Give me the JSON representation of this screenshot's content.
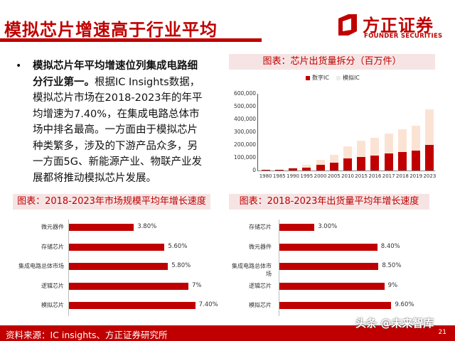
{
  "header": {
    "title": "模拟芯片增速高于行业平均",
    "logo_cn": "方正证券",
    "logo_en": "FOUNDER SECURITIES"
  },
  "bullet": {
    "marker": "•",
    "bold": "模拟芯片年平均增速位列集成电路细分行业第一。",
    "text": "根据IC Insights数据，模拟芯片市场在2018-2023年的年平均增速为7.40%，在集成电路总体市场中排名最高。一方面由于模拟芯片种类繁多，涉及的下游产品众多，另一方面5G、新能源产业、物联产业发展都将推动模拟芯片发展。"
  },
  "footer": {
    "source": "资料来源：IC insights、方正证券研究所",
    "page": "21",
    "watermark": "头条 @未来智库"
  },
  "colors": {
    "accent": "#c00000",
    "light": "#fbe3d4",
    "header_bg": "#f6e4e4"
  },
  "chart_data": [
    {
      "type": "bar",
      "stacked": true,
      "title": "图表：芯片出货量拆分（百万件）",
      "legend": [
        "数字IC",
        "模拟IC"
      ],
      "legend_position": "top",
      "categories": [
        "1980",
        "1985",
        "1990",
        "1995",
        "2000",
        "2005",
        "2010",
        "2015",
        "2016",
        "2017",
        "2018",
        "2019",
        "2023"
      ],
      "series": [
        {
          "name": "数字IC",
          "color": "#c00000",
          "values": [
            3000,
            6000,
            17000,
            25000,
            45000,
            60000,
            95000,
            108000,
            115000,
            133000,
            142000,
            153000,
            200000
          ]
        },
        {
          "name": "模拟IC",
          "color": "#fbe3d4",
          "values": [
            2000,
            2000,
            8000,
            20000,
            40000,
            60000,
            95000,
            127000,
            140000,
            157000,
            178000,
            197000,
            280000
          ]
        }
      ],
      "yticks": [
        "0",
        "100,000",
        "200,000",
        "300,000",
        "400,000",
        "500,000",
        "600,000"
      ],
      "ylim": [
        0,
        600000
      ],
      "xlabel": "",
      "ylabel": ""
    },
    {
      "type": "bar",
      "orientation": "horizontal",
      "title": "图表：2018-2023年市场规模平均年增长速度",
      "categories": [
        "微元器件",
        "存储芯片",
        "集成电路总体市场",
        "逻辑芯片",
        "模拟芯片"
      ],
      "values": [
        3.8,
        5.6,
        5.8,
        7.0,
        7.4
      ],
      "labels": [
        "3.80%",
        "5.60%",
        "5.80%",
        "7%",
        "7.40%"
      ],
      "xlabel": "",
      "ylabel": ""
    },
    {
      "type": "bar",
      "orientation": "horizontal",
      "title": "图表：2018-2023年出货量平均年增长速度",
      "categories": [
        "存储芯片",
        "微元器件",
        "集成电路总体市场",
        "逻辑芯片",
        "模拟芯片"
      ],
      "values": [
        3.0,
        8.4,
        8.5,
        9.0,
        9.6
      ],
      "labels": [
        "3.00%",
        "8.40%",
        "8.50%",
        "9%",
        "9.60%"
      ],
      "xlabel": "",
      "ylabel": ""
    }
  ]
}
